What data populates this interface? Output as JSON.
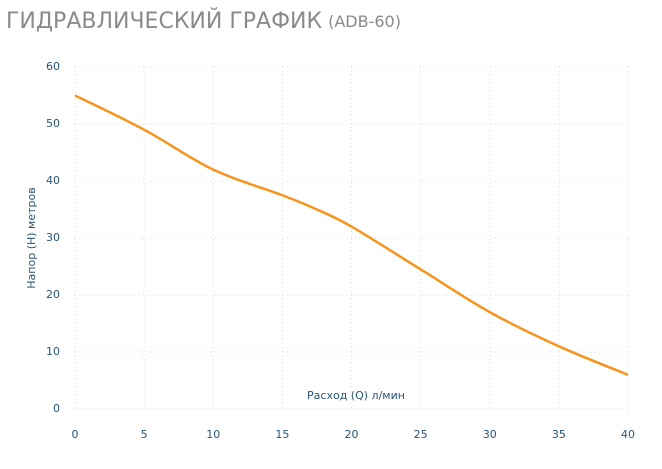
{
  "chart_data": {
    "type": "line",
    "title": "ГИДРАВЛИЧЕСКИЙ ГРАФИК",
    "subtitle": "(ADB-60)",
    "x_label": "Расход (Q) л/мин",
    "y_label": "Напор (H) метров",
    "x": [
      0,
      5,
      10,
      15,
      17.5,
      20,
      25,
      30,
      35,
      40
    ],
    "series": [
      {
        "name": "ADB-60",
        "color": "#f7941d",
        "values": [
          55,
          49,
          42,
          37.5,
          35,
          32,
          24.5,
          17,
          11,
          6
        ]
      }
    ],
    "xlim": [
      0,
      40
    ],
    "xticks": [
      0,
      5,
      10,
      15,
      20,
      25,
      30,
      35,
      40
    ],
    "ylim": [
      0,
      60
    ],
    "yticks": [
      0,
      10,
      20,
      30,
      40,
      50,
      60
    ],
    "grid": true
  }
}
